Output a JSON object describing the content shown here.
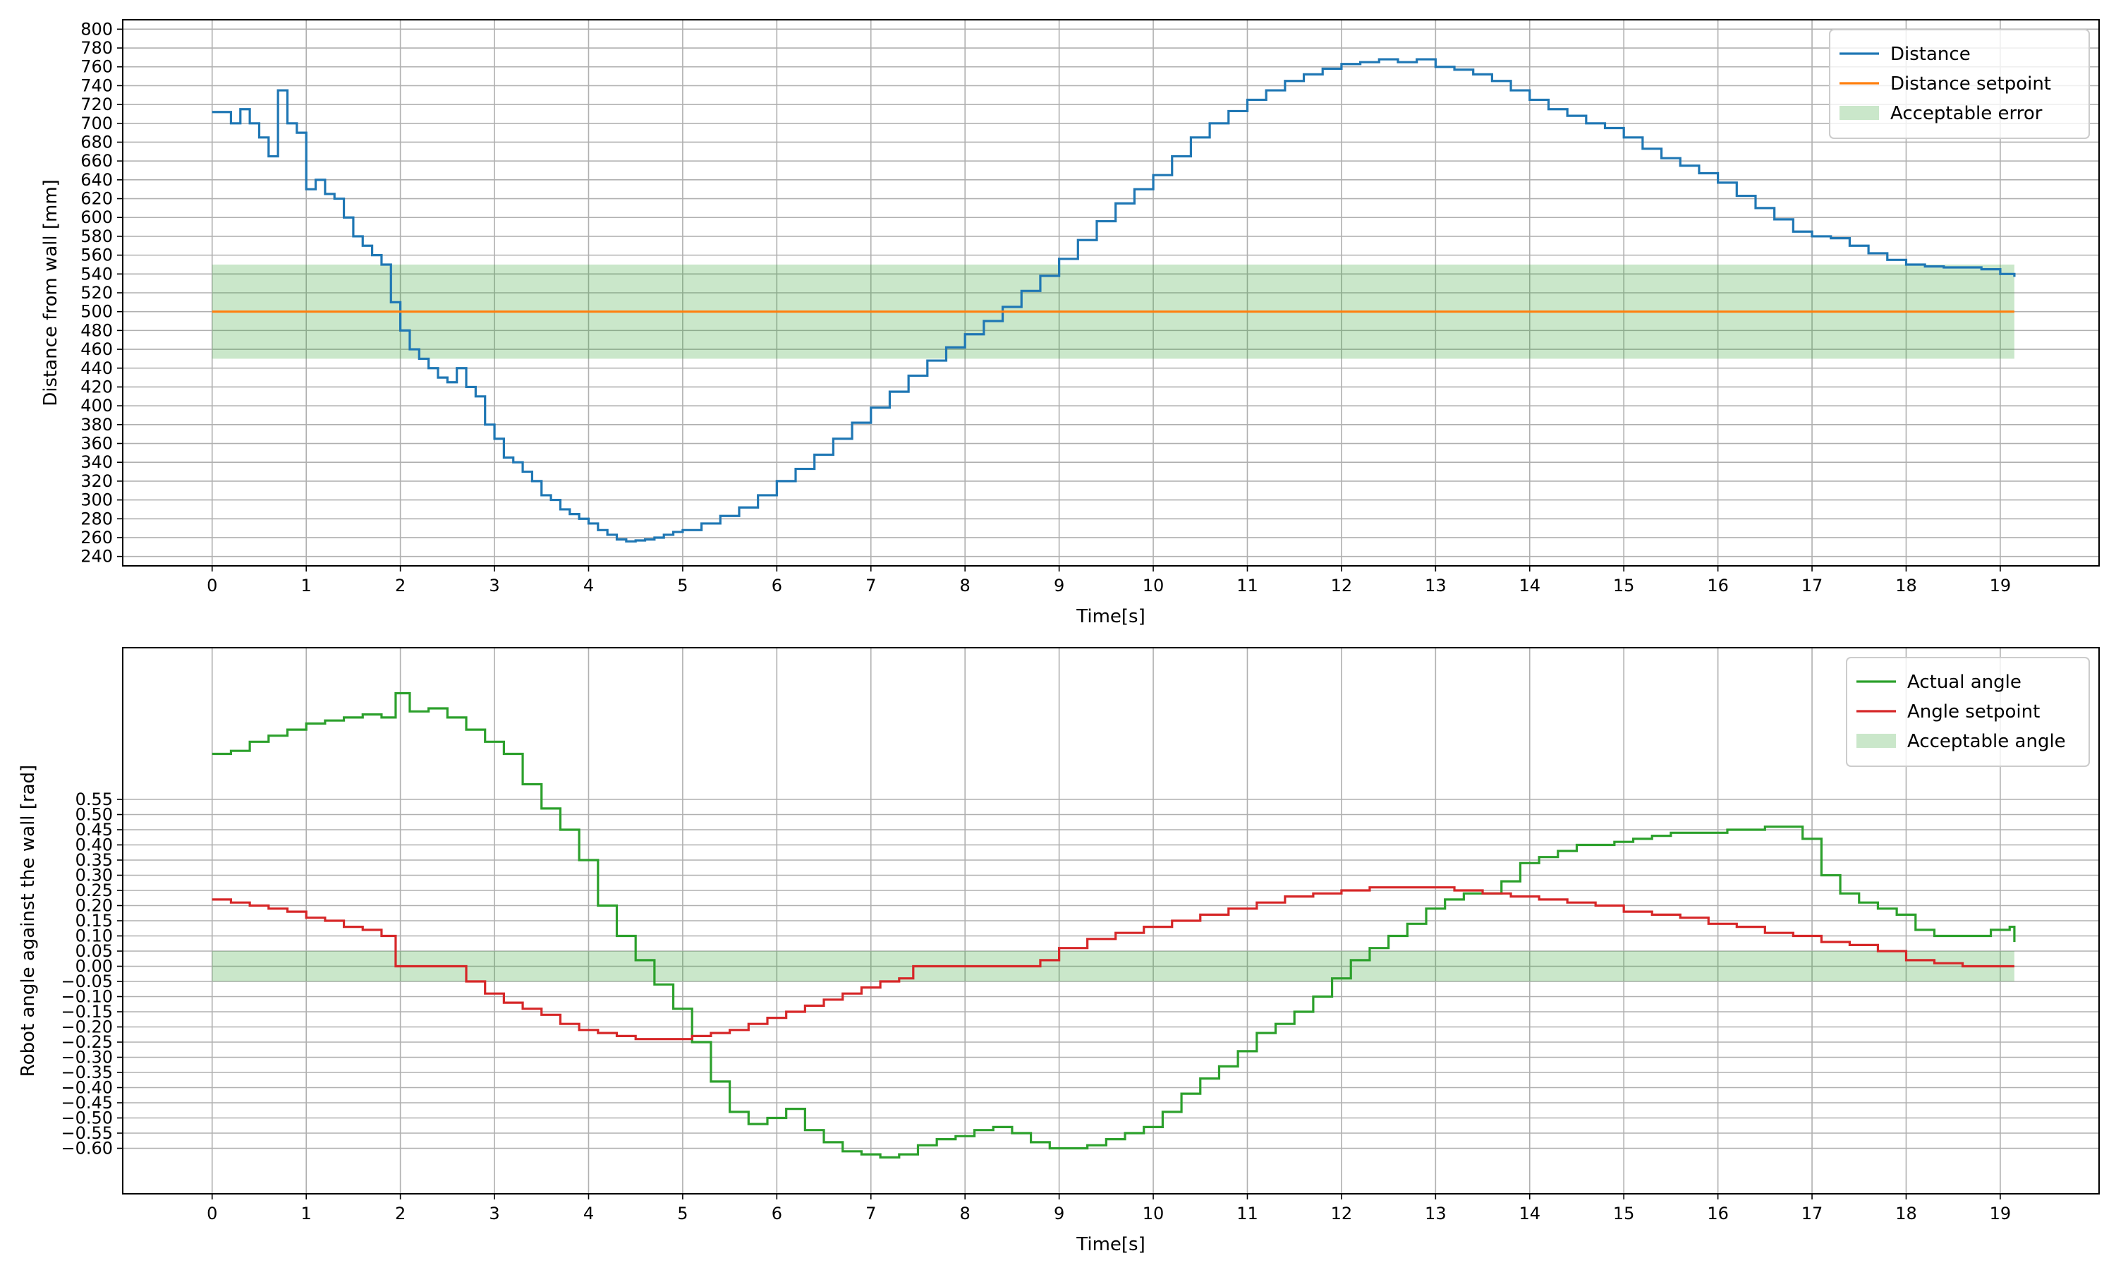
{
  "chart_data": [
    {
      "type": "line",
      "title": "",
      "xlabel": "Time[s]",
      "ylabel": "Distance from wall [mm]",
      "xlim": [
        -0.95,
        20.05
      ],
      "ylim": [
        230,
        810
      ],
      "x_ticks": [
        0,
        1,
        2,
        3,
        4,
        5,
        6,
        7,
        8,
        9,
        10,
        11,
        12,
        13,
        14,
        15,
        16,
        17,
        18,
        19
      ],
      "y_ticks": [
        240,
        260,
        280,
        300,
        320,
        340,
        360,
        380,
        400,
        420,
        440,
        460,
        480,
        500,
        520,
        540,
        560,
        580,
        600,
        620,
        640,
        660,
        680,
        700,
        720,
        740,
        760,
        780,
        800
      ],
      "grid": true,
      "legend_position": "top-right",
      "step": true,
      "series": [
        {
          "name": "Distance",
          "color": "#1f77b4",
          "x": [
            0,
            0.1,
            0.2,
            0.3,
            0.4,
            0.5,
            0.6,
            0.7,
            0.8,
            0.9,
            1.0,
            1.1,
            1.2,
            1.3,
            1.4,
            1.5,
            1.6,
            1.7,
            1.8,
            1.9,
            2.0,
            2.1,
            2.2,
            2.3,
            2.4,
            2.5,
            2.6,
            2.7,
            2.8,
            2.9,
            3.0,
            3.1,
            3.2,
            3.3,
            3.4,
            3.5,
            3.6,
            3.7,
            3.8,
            3.9,
            4.0,
            4.1,
            4.2,
            4.3,
            4.4,
            4.5,
            4.6,
            4.7,
            4.8,
            4.9,
            5.0,
            5.2,
            5.4,
            5.6,
            5.8,
            6.0,
            6.2,
            6.4,
            6.6,
            6.8,
            7.0,
            7.2,
            7.4,
            7.6,
            7.8,
            8.0,
            8.2,
            8.4,
            8.6,
            8.8,
            9.0,
            9.2,
            9.4,
            9.6,
            9.8,
            10.0,
            10.2,
            10.4,
            10.6,
            10.8,
            11.0,
            11.2,
            11.4,
            11.6,
            11.8,
            12.0,
            12.2,
            12.4,
            12.6,
            12.8,
            13.0,
            13.2,
            13.4,
            13.6,
            13.8,
            14.0,
            14.2,
            14.4,
            14.6,
            14.8,
            15.0,
            15.2,
            15.4,
            15.6,
            15.8,
            16.0,
            16.2,
            16.4,
            16.6,
            16.8,
            17.0,
            17.2,
            17.4,
            17.6,
            17.8,
            18.0,
            18.2,
            18.4,
            18.6,
            18.8,
            19.0,
            19.15
          ],
          "values": [
            712,
            712,
            700,
            715,
            700,
            685,
            665,
            735,
            700,
            690,
            630,
            640,
            625,
            620,
            600,
            580,
            570,
            560,
            550,
            510,
            480,
            460,
            450,
            440,
            430,
            425,
            440,
            420,
            410,
            380,
            365,
            345,
            340,
            330,
            320,
            305,
            300,
            290,
            285,
            280,
            275,
            268,
            263,
            258,
            256,
            257,
            258,
            260,
            263,
            266,
            268,
            275,
            283,
            292,
            305,
            320,
            333,
            348,
            365,
            382,
            398,
            415,
            432,
            448,
            462,
            476,
            490,
            505,
            522,
            538,
            556,
            576,
            596,
            615,
            630,
            645,
            665,
            685,
            700,
            713,
            725,
            735,
            745,
            752,
            758,
            763,
            765,
            768,
            765,
            768,
            760,
            757,
            752,
            745,
            735,
            725,
            715,
            708,
            700,
            695,
            685,
            673,
            663,
            655,
            647,
            637,
            623,
            610,
            598,
            585,
            580,
            578,
            570,
            562,
            555,
            550,
            548,
            547,
            547,
            545,
            540,
            537
          ]
        },
        {
          "name": "Distance setpoint",
          "color": "#ff7f0e",
          "x": [
            0,
            19.15
          ],
          "values": [
            500,
            500
          ]
        }
      ],
      "band": {
        "name": "Acceptable error",
        "color": "#2ca02c",
        "lower": 450,
        "upper": 550,
        "x": [
          0,
          19.15
        ]
      }
    },
    {
      "type": "line",
      "title": "",
      "xlabel": "Time[s]",
      "ylabel": "Robot angle against the wall [rad]",
      "xlim": [
        -0.95,
        20.05
      ],
      "ylim": [
        -0.75,
        1.05
      ],
      "x_ticks": [
        0,
        1,
        2,
        3,
        4,
        5,
        6,
        7,
        8,
        9,
        10,
        11,
        12,
        13,
        14,
        15,
        16,
        17,
        18,
        19
      ],
      "y_ticks": [
        0.55,
        0.5,
        0.45,
        0.4,
        0.35,
        0.3,
        0.25,
        0.2,
        0.15,
        0.1,
        0.05,
        0.0,
        -0.05,
        -0.1,
        -0.15,
        -0.2,
        -0.25,
        -0.3,
        -0.35,
        -0.4,
        -0.45,
        -0.5,
        -0.55,
        -0.6
      ],
      "y_tick_labels": [
        "0.55",
        "0.50",
        "0.45",
        "0.40",
        "0.35",
        "0.30",
        "0.25",
        "0.20",
        "0.15",
        "0.10",
        "0.05",
        "0.00",
        "−0.05",
        "−0.10",
        "−0.15",
        "−0.20",
        "−0.25",
        "−0.30",
        "−0.35",
        "−0.40",
        "−0.45",
        "−0.50",
        "−0.55",
        "−0.60"
      ],
      "grid": true,
      "legend_position": "top-right",
      "step": true,
      "series": [
        {
          "name": "Actual angle",
          "color": "#2ca02c",
          "x": [
            0,
            0.2,
            0.4,
            0.6,
            0.8,
            1.0,
            1.2,
            1.4,
            1.6,
            1.8,
            1.95,
            2.1,
            2.3,
            2.5,
            2.7,
            2.9,
            3.1,
            3.3,
            3.5,
            3.7,
            3.9,
            4.1,
            4.3,
            4.5,
            4.7,
            4.9,
            5.1,
            5.3,
            5.5,
            5.7,
            5.9,
            6.1,
            6.3,
            6.5,
            6.7,
            6.9,
            7.1,
            7.3,
            7.5,
            7.7,
            7.9,
            8.1,
            8.3,
            8.5,
            8.7,
            8.9,
            9.1,
            9.3,
            9.5,
            9.7,
            9.9,
            10.1,
            10.3,
            10.5,
            10.7,
            10.9,
            11.1,
            11.3,
            11.5,
            11.7,
            11.9,
            12.1,
            12.3,
            12.5,
            12.7,
            12.9,
            13.1,
            13.3,
            13.5,
            13.7,
            13.9,
            14.1,
            14.3,
            14.5,
            14.7,
            14.9,
            15.1,
            15.3,
            15.5,
            15.7,
            15.9,
            16.1,
            16.3,
            16.5,
            16.7,
            16.9,
            17.1,
            17.3,
            17.5,
            17.7,
            17.9,
            18.1,
            18.3,
            18.5,
            18.7,
            18.9,
            19.1,
            19.15
          ],
          "values": [
            0.7,
            0.71,
            0.74,
            0.76,
            0.78,
            0.8,
            0.81,
            0.82,
            0.83,
            0.82,
            0.9,
            0.84,
            0.85,
            0.82,
            0.78,
            0.74,
            0.7,
            0.6,
            0.52,
            0.45,
            0.35,
            0.2,
            0.1,
            0.02,
            -0.06,
            -0.14,
            -0.25,
            -0.38,
            -0.48,
            -0.52,
            -0.5,
            -0.47,
            -0.54,
            -0.58,
            -0.61,
            -0.62,
            -0.63,
            -0.62,
            -0.59,
            -0.57,
            -0.56,
            -0.54,
            -0.53,
            -0.55,
            -0.58,
            -0.6,
            -0.6,
            -0.59,
            -0.57,
            -0.55,
            -0.53,
            -0.48,
            -0.42,
            -0.37,
            -0.33,
            -0.28,
            -0.22,
            -0.19,
            -0.15,
            -0.1,
            -0.04,
            0.02,
            0.06,
            0.1,
            0.14,
            0.19,
            0.22,
            0.24,
            0.24,
            0.28,
            0.34,
            0.36,
            0.38,
            0.4,
            0.4,
            0.41,
            0.42,
            0.43,
            0.44,
            0.44,
            0.44,
            0.45,
            0.45,
            0.46,
            0.46,
            0.42,
            0.3,
            0.24,
            0.21,
            0.19,
            0.17,
            0.12,
            0.1,
            0.1,
            0.1,
            0.12,
            0.13,
            0.08
          ]
        },
        {
          "name": "Angle setpoint",
          "color": "#d62728",
          "x": [
            0,
            0.2,
            0.4,
            0.6,
            0.8,
            1.0,
            1.2,
            1.4,
            1.6,
            1.8,
            1.95,
            2.2,
            2.5,
            2.7,
            2.9,
            3.1,
            3.3,
            3.5,
            3.7,
            3.9,
            4.1,
            4.3,
            4.5,
            4.7,
            4.9,
            5.1,
            5.3,
            5.5,
            5.7,
            5.9,
            6.1,
            6.3,
            6.5,
            6.7,
            6.9,
            7.1,
            7.3,
            7.45,
            7.8,
            8.2,
            8.6,
            8.8,
            9.0,
            9.3,
            9.6,
            9.9,
            10.2,
            10.5,
            10.8,
            11.1,
            11.4,
            11.7,
            12.0,
            12.3,
            12.6,
            12.9,
            13.2,
            13.5,
            13.8,
            14.1,
            14.4,
            14.7,
            15.0,
            15.3,
            15.6,
            15.9,
            16.2,
            16.5,
            16.8,
            17.1,
            17.4,
            17.7,
            18.0,
            18.3,
            18.6,
            18.9,
            19.15
          ],
          "values": [
            0.22,
            0.21,
            0.2,
            0.19,
            0.18,
            0.16,
            0.15,
            0.13,
            0.12,
            0.1,
            0.0,
            0.0,
            0.0,
            -0.05,
            -0.09,
            -0.12,
            -0.14,
            -0.16,
            -0.19,
            -0.21,
            -0.22,
            -0.23,
            -0.24,
            -0.24,
            -0.24,
            -0.23,
            -0.22,
            -0.21,
            -0.19,
            -0.17,
            -0.15,
            -0.13,
            -0.11,
            -0.09,
            -0.07,
            -0.05,
            -0.04,
            0.0,
            0.0,
            0.0,
            0.0,
            0.02,
            0.06,
            0.09,
            0.11,
            0.13,
            0.15,
            0.17,
            0.19,
            0.21,
            0.23,
            0.24,
            0.25,
            0.26,
            0.26,
            0.26,
            0.25,
            0.24,
            0.23,
            0.22,
            0.21,
            0.2,
            0.18,
            0.17,
            0.16,
            0.14,
            0.13,
            0.11,
            0.1,
            0.08,
            0.07,
            0.05,
            0.02,
            0.01,
            0.0,
            0.0,
            0.0
          ]
        }
      ],
      "band": {
        "name": "Acceptable angle",
        "color": "#2ca02c",
        "lower": -0.05,
        "upper": 0.05,
        "x": [
          0,
          19.15
        ]
      }
    }
  ]
}
